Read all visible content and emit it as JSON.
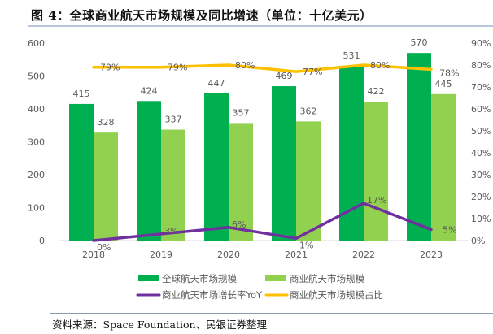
{
  "title": "图 4：全球商业航天市场规模及同比增速（单位：十亿美元）",
  "footer": "资料来源：Space Foundation、民银证券整理",
  "colors": {
    "global_bar": "#00b050",
    "commercial_bar": "#92d050",
    "yoy_line": "#7030a0",
    "ratio_line": "#ffc000",
    "axis_text": "#595959",
    "axis_line": "#d9d9d9"
  },
  "chart_data": {
    "type": "bar",
    "title": "全球商业航天市场规模及同比增速（单位：十亿美元）",
    "xlabel": "",
    "ylabel": "",
    "categories": [
      "2018",
      "2019",
      "2020",
      "2021",
      "2022",
      "2023"
    ],
    "ylim": [
      0,
      600
    ],
    "y_ticks": [
      "0",
      "100",
      "200",
      "300",
      "400",
      "500",
      "600"
    ],
    "y2lim": [
      0,
      0.9
    ],
    "y2_ticks": [
      "0%",
      "10%",
      "20%",
      "30%",
      "40%",
      "50%",
      "60%",
      "70%",
      "80%",
      "90%"
    ],
    "grid": false,
    "legend_position": "bottom",
    "series": [
      {
        "name": "全球航天市场规模",
        "type": "bar",
        "axis": "left",
        "values": [
          415,
          424,
          447,
          469,
          531,
          570
        ],
        "labels": [
          "415",
          "424",
          "447",
          "469",
          "531",
          "570"
        ]
      },
      {
        "name": "商业航天市场规模",
        "type": "bar",
        "axis": "left",
        "values": [
          328,
          337,
          357,
          362,
          422,
          445
        ],
        "labels": [
          "328",
          "337",
          "357",
          "362",
          "422",
          "445"
        ]
      },
      {
        "name": "商业航天市场增长率YoY",
        "type": "line",
        "axis": "right",
        "values": [
          0.0,
          0.03,
          0.06,
          0.01,
          0.17,
          0.05
        ],
        "labels": [
          "0%",
          "3%",
          "6%",
          "1%",
          "17%",
          "5%"
        ]
      },
      {
        "name": "商业航天市场规模占比",
        "type": "line",
        "axis": "right",
        "values": [
          0.79,
          0.79,
          0.8,
          0.77,
          0.8,
          0.78
        ],
        "labels": [
          "79%",
          "79%",
          "80%",
          "77%",
          "80%",
          "78%"
        ]
      }
    ]
  }
}
